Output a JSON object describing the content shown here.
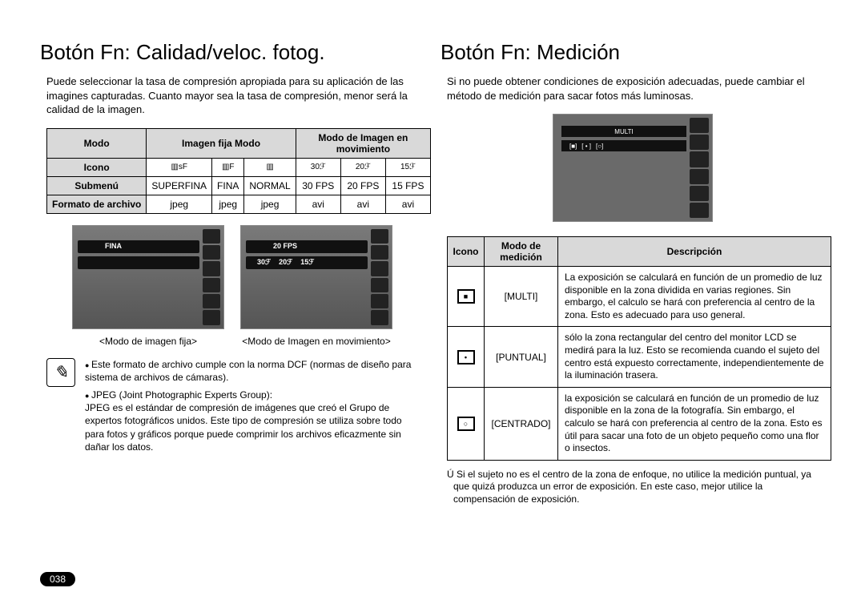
{
  "left": {
    "title": "Botón Fn: Calidad/veloc. fotog.",
    "intro": "Puede seleccionar la tasa de compresión apropiada para su aplicación de las imagines capturadas. Cuanto mayor sea la tasa de compresión, menor será la calidad de la imagen.",
    "table": {
      "h_modo": "Modo",
      "h_fija": "Imagen fija Modo",
      "h_mov": "Modo de Imagen en movimiento",
      "r_icono": "Icono",
      "r_sub": "Submenú",
      "r_fmt": "Formato de archivo",
      "sub": [
        "SUPERFINA",
        "FINA",
        "NORMAL",
        "30 FPS",
        "20 FPS",
        "15 FPS"
      ],
      "fmt": [
        "jpeg",
        "jpeg",
        "jpeg",
        "avi",
        "avi",
        "avi"
      ],
      "icons": [
        "▥sF",
        "▥F",
        "▥",
        "30ℱ",
        "20ℱ",
        "15ℱ"
      ]
    },
    "lcd1_tag": "FINA",
    "lcd2_tag": "20 FPS",
    "lcd2_opts": [
      "30ℱ",
      "20ℱ",
      "15ℱ"
    ],
    "cap1": "<Modo de imagen fija>",
    "cap2": "<Modo de Imagen en movimiento>",
    "note1": "Este formato de archivo cumple con la norma DCF (normas de diseño para sistema de archivos de cámaras).",
    "note2": "JPEG (Joint Photographic Experts Group):\nJPEG es el estándar de compresión de imágenes que creó el Grupo de expertos fotográficos unidos. Este tipo de compresión se utiliza sobre todo para fotos y gráficos porque puede comprimir los archivos eficazmente sin dañar los datos."
  },
  "right": {
    "title": "Botón Fn: Medición",
    "intro": "Si no puede obtener condiciones de exposición adecuadas, puede cambiar el método de medición para sacar fotos más luminosas.",
    "lcd_top": "MULTI",
    "lcd_opts": [
      "[■]",
      "[ • ]",
      "[○]"
    ],
    "table": {
      "h_icono": "Icono",
      "h_modo": "Modo de medición",
      "h_desc": "Descripción",
      "rows": [
        {
          "icon": "■",
          "mode": "[MULTI]",
          "desc": "La exposición se calculará en función de un promedio de luz disponible en la zona dividida en varias regiones. Sin embargo, el calculo se hará con preferencia al centro de la zona. Esto es adecuado para uso general."
        },
        {
          "icon": "•",
          "mode": "[PUNTUAL]",
          "desc": "sólo la zona rectangular del centro del monitor LCD se medirá para la luz. Esto se recomienda cuando el sujeto del centro está expuesto correctamente, independientemente de la iluminación trasera."
        },
        {
          "icon": "○",
          "mode": "[CENTRADO]",
          "desc": "la exposición se calculará en función de un promedio de luz disponible en la zona de la fotografía. Sin embargo, el calculo se hará con preferencia al centro de la zona. Esto es útil para sacar una foto de un objeto pequeño como una flor o insectos."
        }
      ]
    },
    "footnote": "Ú Si el sujeto no es el centro de la zona de enfoque, no utilice la medición puntual, ya que quizá produzca un error de exposición. En este caso, mejor utilice la compensación de exposición."
  },
  "pagenum": "038"
}
